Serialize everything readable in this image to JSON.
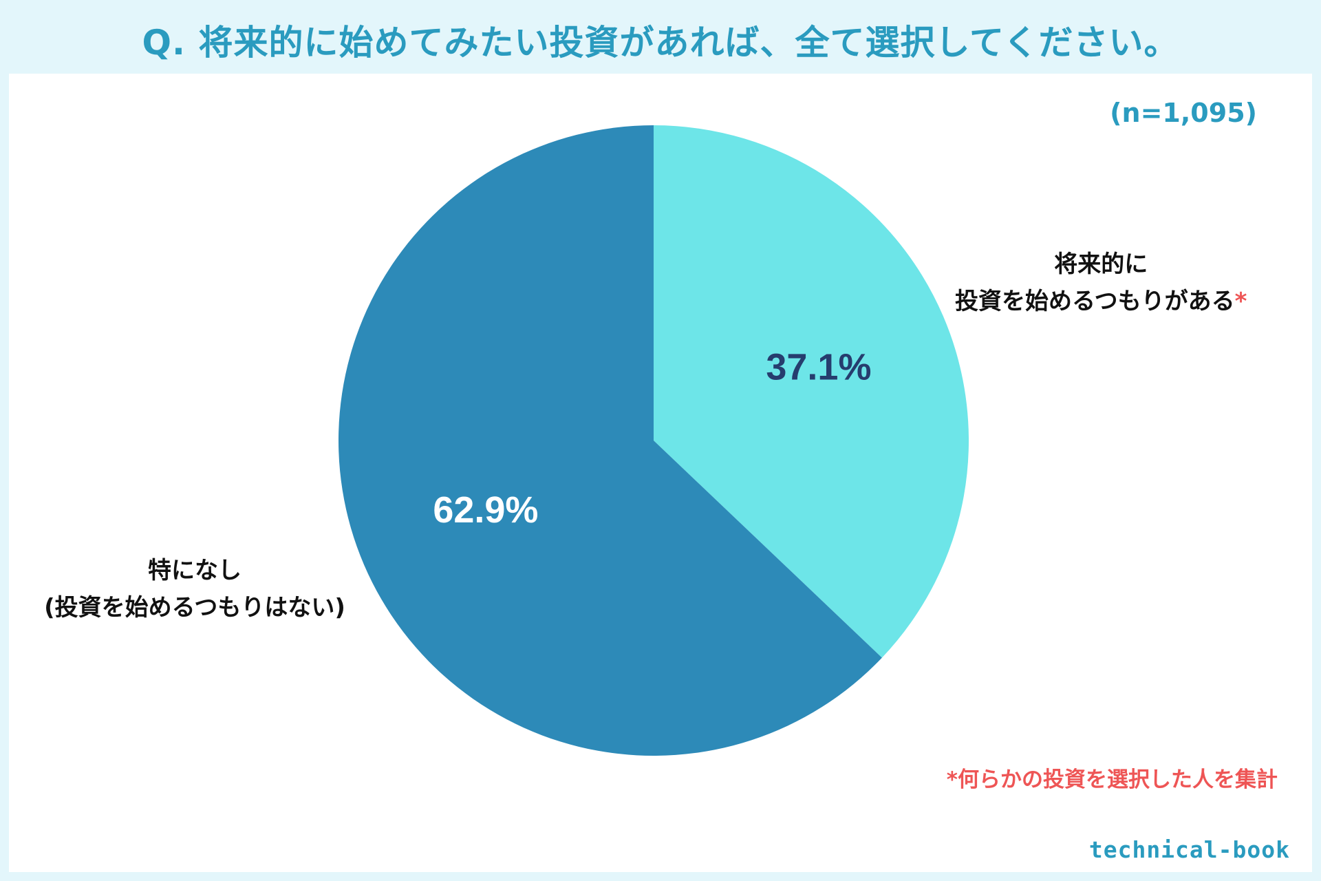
{
  "title": "Q. 将来的に始めてみたい投資があれば、全て選択してください。",
  "sample_size": "(n=1,095)",
  "labels": {
    "invest_line1": "将来的に",
    "invest_line2": "投資を始めるつもりがある",
    "invest_mark": "*",
    "none_line1": "特になし",
    "none_line2": "(投資を始めるつもりはない)"
  },
  "footnote": "*何らかの投資を選択した人を集計",
  "logo": "technical-book",
  "chart_data": {
    "type": "pie",
    "categories": [
      "将来的に投資を始めるつもりがある*",
      "特になし(投資を始めるつもりはない)"
    ],
    "values": [
      37.1,
      62.9
    ],
    "value_labels": [
      "37.1%",
      "62.9%"
    ],
    "colors": [
      "#6de5e8",
      "#2d8ab8"
    ],
    "label_colors": [
      "#263d6e",
      "#ffffff"
    ]
  }
}
